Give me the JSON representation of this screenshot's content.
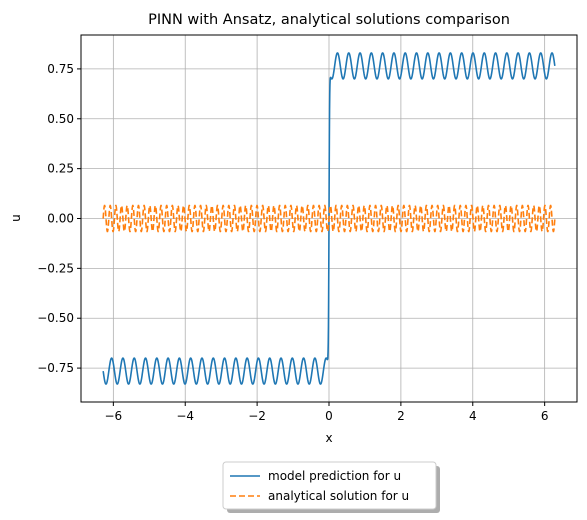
{
  "chart_data": {
    "type": "line",
    "title": "PINN with Ansatz, analytical solutions comparison",
    "xlabel": "x",
    "ylabel": "u",
    "xlim": [
      -6.9,
      6.9
    ],
    "ylim": [
      -0.92,
      0.92
    ],
    "xticks": [
      -6,
      -4,
      -2,
      0,
      2,
      4,
      6
    ],
    "xtick_labels": [
      "−6",
      "−4",
      "−2",
      "0",
      "2",
      "4",
      "6"
    ],
    "yticks": [
      -0.75,
      -0.5,
      -0.25,
      0.0,
      0.25,
      0.5,
      0.75
    ],
    "ytick_labels": [
      "−0.75",
      "−0.50",
      "−0.25",
      "0.00",
      "0.25",
      "0.50",
      "0.75"
    ],
    "grid": true,
    "legend_position": "below-center",
    "series": [
      {
        "name": "model prediction for u",
        "color": "#1f77b4",
        "style": "solid",
        "x_range": [
          -6.2832,
          6.2832
        ],
        "description_formula": "0.765*tanh(60x) - 0.065*sin(20x)"
      },
      {
        "name": "analytical solution for u",
        "color": "#ff7f0e",
        "style": "dashed",
        "x_range": [
          -6.2832,
          6.2832
        ],
        "description_formula": "0.065*sin(40x)"
      }
    ]
  }
}
